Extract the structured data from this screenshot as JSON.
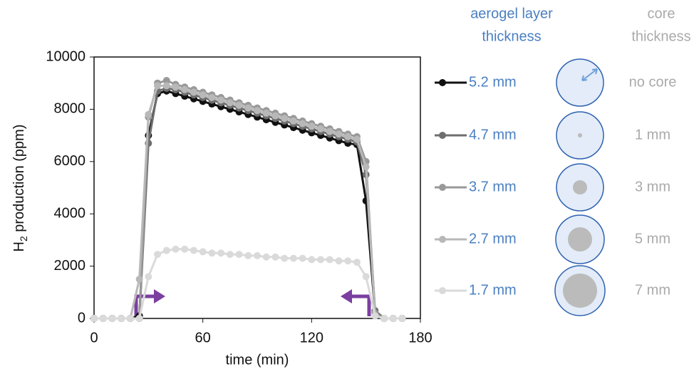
{
  "chart_data": {
    "type": "line",
    "xlabel": "time (min)",
    "ylabel": [
      "H",
      "2",
      " production (ppm)"
    ],
    "legend_title": [
      "aerogel layer",
      "thickness"
    ],
    "core_title": [
      "core",
      "thickness"
    ],
    "core_labels": [
      "no core",
      "1 mm",
      "3 mm",
      "5 mm",
      "7 mm"
    ],
    "x": [
      0,
      5,
      10,
      15,
      20,
      25,
      30,
      35,
      40,
      45,
      50,
      55,
      60,
      65,
      70,
      75,
      80,
      85,
      90,
      95,
      100,
      105,
      110,
      115,
      120,
      125,
      130,
      135,
      140,
      145,
      150,
      155,
      160,
      165,
      170
    ],
    "xlim": [
      0,
      180
    ],
    "xticks": [
      0,
      60,
      120,
      180
    ],
    "ylim": [
      0,
      10000
    ],
    "yticks": [
      0,
      2000,
      4000,
      6000,
      8000,
      10000
    ],
    "series": [
      {
        "name": "5.2 mm",
        "color": "#111111",
        "values": [
          0,
          0,
          0,
          0,
          0,
          100,
          7000,
          8600,
          8700,
          8600,
          8500,
          8400,
          8300,
          8200,
          8100,
          8000,
          7900,
          7800,
          7700,
          7600,
          7500,
          7400,
          7300,
          7200,
          7100,
          7000,
          6900,
          6800,
          6700,
          6650,
          4500,
          200,
          0,
          0,
          0
        ]
      },
      {
        "name": "4.7 mm",
        "color": "#6e6e6e",
        "values": [
          0,
          0,
          0,
          0,
          0,
          0,
          6700,
          8700,
          8800,
          8750,
          8650,
          8550,
          8450,
          8350,
          8250,
          8150,
          8050,
          7950,
          7850,
          7750,
          7650,
          7550,
          7450,
          7350,
          7250,
          7150,
          7050,
          6950,
          6850,
          6750,
          5500,
          300,
          0,
          0,
          0
        ]
      },
      {
        "name": "3.7 mm",
        "color": "#999999",
        "values": [
          0,
          0,
          0,
          0,
          0,
          0,
          7700,
          9000,
          9100,
          8950,
          8850,
          8750,
          8650,
          8550,
          8450,
          8350,
          8250,
          8150,
          8050,
          7950,
          7850,
          7750,
          7650,
          7550,
          7450,
          7350,
          7250,
          7150,
          7050,
          6950,
          6000,
          200,
          0,
          0,
          0
        ]
      },
      {
        "name": "2.7 mm",
        "color": "#b8b8b8",
        "values": [
          0,
          0,
          0,
          0,
          0,
          1500,
          7800,
          8900,
          8900,
          8850,
          8750,
          8650,
          8550,
          8450,
          8350,
          8250,
          8150,
          8050,
          7950,
          7850,
          7750,
          7650,
          7550,
          7450,
          7350,
          7250,
          7150,
          7050,
          6950,
          6850,
          5800,
          100,
          0,
          0,
          0
        ]
      },
      {
        "name": "1.7 mm",
        "color": "#dadada",
        "values": [
          0,
          0,
          0,
          0,
          0,
          0,
          1600,
          2450,
          2600,
          2650,
          2650,
          2600,
          2550,
          2500,
          2500,
          2450,
          2450,
          2400,
          2400,
          2350,
          2350,
          2300,
          2300,
          2300,
          2250,
          2250,
          2250,
          2200,
          2200,
          2150,
          1600,
          100,
          0,
          0,
          0
        ]
      }
    ]
  }
}
